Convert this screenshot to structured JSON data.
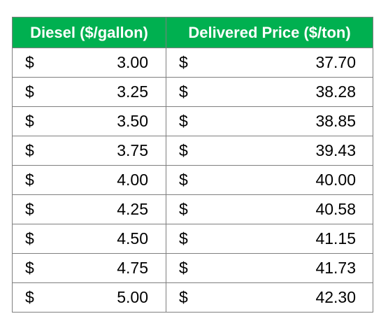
{
  "table": {
    "headers": [
      "Diesel ($/gallon)",
      "Delivered Price ($/ton)"
    ],
    "currency_symbol": "$",
    "header_color": "#00b050",
    "header_text_color": "#ffffff",
    "rows": [
      {
        "diesel": "3.00",
        "delivered": "37.70"
      },
      {
        "diesel": "3.25",
        "delivered": "38.28"
      },
      {
        "diesel": "3.50",
        "delivered": "38.85"
      },
      {
        "diesel": "3.75",
        "delivered": "39.43"
      },
      {
        "diesel": "4.00",
        "delivered": "40.00"
      },
      {
        "diesel": "4.25",
        "delivered": "40.58"
      },
      {
        "diesel": "4.50",
        "delivered": "41.15"
      },
      {
        "diesel": "4.75",
        "delivered": "41.73"
      },
      {
        "diesel": "5.00",
        "delivered": "42.30"
      }
    ]
  }
}
